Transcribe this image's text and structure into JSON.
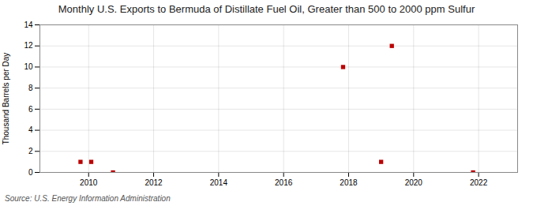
{
  "chart_data": {
    "type": "scatter",
    "title": "Monthly U.S. Exports to Bermuda of Distillate Fuel Oil, Greater than 500 to 2000 ppm Sulfur",
    "ylabel": "Thousand Barrels per Day",
    "source": "Source: U.S. Energy Information Administration",
    "x": [
      2009.75,
      2010.08,
      2010.75,
      2017.83,
      2019.0,
      2019.33,
      2021.83
    ],
    "values": [
      1.0,
      1.0,
      0.0,
      10.0,
      1.0,
      12.0,
      0.0
    ],
    "color": "#bb0000",
    "marker": "square",
    "xlim": [
      2008.5,
      2023.2
    ],
    "ylim": [
      0,
      14
    ],
    "xticks": [
      2010,
      2012,
      2014,
      2016,
      2018,
      2020,
      2022
    ],
    "yticks": [
      0,
      2,
      4,
      6,
      8,
      10,
      12,
      14
    ],
    "grid": true
  }
}
